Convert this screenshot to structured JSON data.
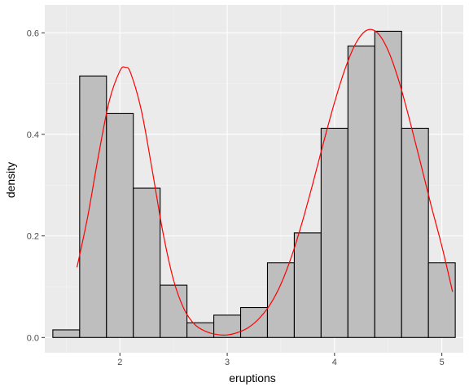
{
  "chart_data": {
    "type": "bar",
    "title": "",
    "xlabel": "eruptions",
    "ylabel": "density",
    "xlim": [
      1.3,
      5.2
    ],
    "ylim": [
      -0.03,
      0.655
    ],
    "x_ticks": [
      {
        "value": 2,
        "label": "2"
      },
      {
        "value": 3,
        "label": "3"
      },
      {
        "value": 4,
        "label": "4"
      },
      {
        "value": 5,
        "label": "5"
      }
    ],
    "y_ticks": [
      {
        "value": 0.0,
        "label": "0.0"
      },
      {
        "value": 0.2,
        "label": "0.2"
      },
      {
        "value": 0.4,
        "label": "0.4"
      },
      {
        "value": 0.6,
        "label": "0.6"
      }
    ],
    "grid": true,
    "histogram": {
      "bin_width": 0.25,
      "bins": [
        {
          "x0": 1.375,
          "x1": 1.625,
          "density": 0.015
        },
        {
          "x0": 1.625,
          "x1": 1.875,
          "density": 0.515
        },
        {
          "x0": 1.875,
          "x1": 2.125,
          "density": 0.441
        },
        {
          "x0": 2.125,
          "x1": 2.375,
          "density": 0.294
        },
        {
          "x0": 2.375,
          "x1": 2.625,
          "density": 0.103
        },
        {
          "x0": 2.625,
          "x1": 2.875,
          "density": 0.029
        },
        {
          "x0": 2.875,
          "x1": 3.125,
          "density": 0.044
        },
        {
          "x0": 3.125,
          "x1": 3.375,
          "density": 0.059
        },
        {
          "x0": 3.375,
          "x1": 3.625,
          "density": 0.147
        },
        {
          "x0": 3.625,
          "x1": 3.875,
          "density": 0.206
        },
        {
          "x0": 3.875,
          "x1": 4.125,
          "density": 0.412
        },
        {
          "x0": 4.125,
          "x1": 4.375,
          "density": 0.574
        },
        {
          "x0": 4.375,
          "x1": 4.625,
          "density": 0.603
        },
        {
          "x0": 4.625,
          "x1": 4.875,
          "density": 0.412
        },
        {
          "x0": 4.875,
          "x1": 5.125,
          "density": 0.147
        }
      ],
      "fill": "#bebebe",
      "stroke": "#000000"
    },
    "density_curve": {
      "color": "#ff0000",
      "x": [
        1.6,
        1.7,
        1.8,
        1.9,
        2.0,
        2.05,
        2.1,
        2.2,
        2.3,
        2.4,
        2.5,
        2.6,
        2.7,
        2.8,
        2.9,
        3.0,
        3.1,
        3.2,
        3.3,
        3.4,
        3.5,
        3.6,
        3.7,
        3.8,
        3.9,
        4.0,
        4.1,
        4.2,
        4.3,
        4.4,
        4.5,
        4.6,
        4.7,
        4.8,
        4.9,
        5.0,
        5.1
      ],
      "y": [
        0.138,
        0.238,
        0.358,
        0.465,
        0.525,
        0.532,
        0.521,
        0.447,
        0.331,
        0.208,
        0.113,
        0.055,
        0.025,
        0.012,
        0.006,
        0.005,
        0.01,
        0.02,
        0.038,
        0.065,
        0.105,
        0.16,
        0.228,
        0.305,
        0.386,
        0.463,
        0.53,
        0.58,
        0.605,
        0.6,
        0.565,
        0.505,
        0.428,
        0.345,
        0.26,
        0.18,
        0.09
      ]
    }
  }
}
